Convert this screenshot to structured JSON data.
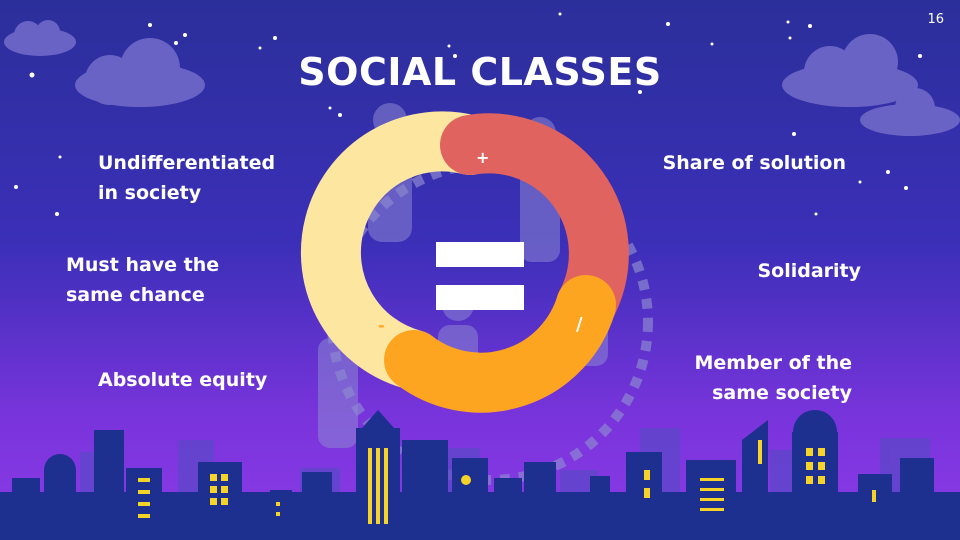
{
  "slide": {
    "title": "SOCIAL CLASSES",
    "page_number": "16"
  },
  "left_labels": [
    "Undifferentiated\nin society",
    "Must have the\nsame chance",
    "Absolute equity"
  ],
  "right_labels": [
    "Share of solution",
    "Solidarity",
    "Member of the\nsame society"
  ],
  "ring": {
    "plus_symbol": "+",
    "minus_symbol": "-",
    "slash_symbol": "/",
    "segment_colors": [
      "#fde6a0",
      "#e0635f",
      "#fda521"
    ]
  },
  "colors": {
    "building": "#1d2f8f",
    "window": "#f5d328",
    "cloud": "#6a63c6",
    "people": "#8c86d2"
  }
}
